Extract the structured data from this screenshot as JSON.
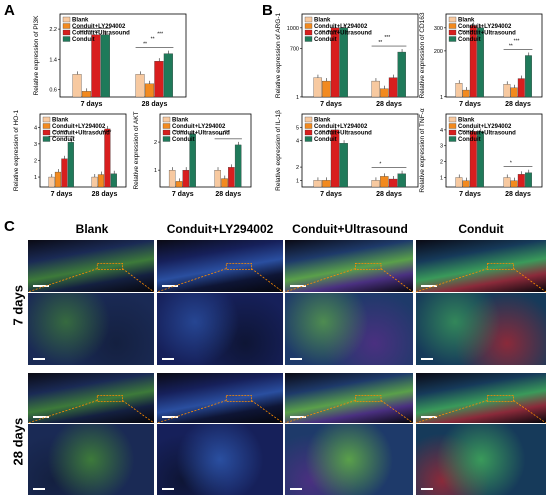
{
  "figure": {
    "panel_labels": [
      "A",
      "B",
      "C"
    ],
    "legend": [
      "Blank",
      "Conduit+LY294002",
      "Conduit+Ultrasound",
      "Conduit"
    ],
    "colors": {
      "Blank": "#f7c9a0",
      "Conduit+LY294002": "#f28a1f",
      "Conduit+Ultrasound": "#d81e1e",
      "Conduit": "#1f7a5a"
    }
  },
  "chart_data": [
    {
      "id": "pi3k",
      "type": "bar",
      "title": "",
      "ylabel": "Relative expression of PI3K",
      "categories": [
        "7 days",
        "28 days"
      ],
      "yticks": [
        "0.6",
        "1.4",
        "2.2"
      ],
      "ylim": [
        0.4,
        2.6
      ],
      "series": [
        {
          "name": "Blank",
          "values": [
            1.0,
            1.0
          ]
        },
        {
          "name": "Conduit+LY294002",
          "values": [
            0.55,
            0.75
          ]
        },
        {
          "name": "Conduit+Ultrasound",
          "values": [
            2.05,
            1.35
          ]
        },
        {
          "name": "Conduit",
          "values": [
            2.05,
            1.55
          ]
        }
      ],
      "annotations": [
        "***",
        "***",
        "***",
        "**",
        "**",
        "***"
      ]
    },
    {
      "id": "ho1",
      "type": "bar",
      "title": "",
      "ylabel": "Relative expression of HO-1",
      "categories": [
        "7 days",
        "28 days"
      ],
      "yticks": [
        "1",
        "2",
        "3",
        "4"
      ],
      "ylim": [
        0.4,
        4.8
      ],
      "series": [
        {
          "name": "Blank",
          "values": [
            1.0,
            1.0
          ]
        },
        {
          "name": "Conduit+LY294002",
          "values": [
            1.3,
            1.15
          ]
        },
        {
          "name": "Conduit+Ultrasound",
          "values": [
            2.1,
            3.9
          ]
        },
        {
          "name": "Conduit",
          "values": [
            3.1,
            1.2
          ]
        }
      ],
      "annotations": [
        "**",
        "**",
        "***",
        "*",
        "**",
        "***"
      ]
    },
    {
      "id": "akt",
      "type": "bar",
      "title": "",
      "ylabel": "Relative expression of AKT",
      "categories": [
        "7 days",
        "28 days"
      ],
      "yticks": [
        "1",
        "2"
      ],
      "ylim": [
        0.4,
        3.0
      ],
      "series": [
        {
          "name": "Blank",
          "values": [
            1.0,
            1.0
          ]
        },
        {
          "name": "Conduit+LY294002",
          "values": [
            0.6,
            0.7
          ]
        },
        {
          "name": "Conduit+Ultrasound",
          "values": [
            1.0,
            1.1
          ]
        },
        {
          "name": "Conduit",
          "values": [
            2.3,
            1.9
          ]
        }
      ],
      "annotations": [
        "**",
        "***",
        "***",
        "***"
      ]
    },
    {
      "id": "arg1",
      "type": "bar",
      "title": "",
      "ylabel": "Relative expression of ARG-1",
      "categories": [
        "7 days",
        "28 days"
      ],
      "yticks": [
        "1",
        "700",
        "1000"
      ],
      "ylim": [
        0,
        1200
      ],
      "series": [
        {
          "name": "Blank",
          "values": [
            280,
            230
          ]
        },
        {
          "name": "Conduit+LY294002",
          "values": [
            230,
            120
          ]
        },
        {
          "name": "Conduit+Ultrasound",
          "values": [
            1000,
            280
          ]
        },
        {
          "name": "Conduit",
          "values": [
            1000,
            650
          ]
        }
      ],
      "annotations": [
        "***",
        "***",
        "***",
        "**",
        "***"
      ]
    },
    {
      "id": "cd163",
      "type": "bar",
      "title": "",
      "ylabel": "Relative expression of CD163",
      "categories": [
        "7 days",
        "28 days"
      ],
      "yticks": [
        "1",
        "200",
        "300"
      ],
      "ylim": [
        0,
        360
      ],
      "series": [
        {
          "name": "Blank",
          "values": [
            60,
            55
          ]
        },
        {
          "name": "Conduit+LY294002",
          "values": [
            30,
            40
          ]
        },
        {
          "name": "Conduit+Ultrasound",
          "values": [
            310,
            80
          ]
        },
        {
          "name": "Conduit",
          "values": [
            300,
            180
          ]
        }
      ],
      "annotations": [
        "***",
        "***",
        "***",
        "**",
        "***"
      ]
    },
    {
      "id": "il1b",
      "type": "bar",
      "title": "",
      "ylabel": "Relative expression of IL-1β",
      "categories": [
        "7 days",
        "28 days"
      ],
      "yticks": [
        "1",
        "2",
        "4",
        "5"
      ],
      "ylim": [
        0.5,
        6
      ],
      "series": [
        {
          "name": "Blank",
          "values": [
            1.0,
            1.0
          ]
        },
        {
          "name": "Conduit+LY294002",
          "values": [
            1.0,
            1.3
          ]
        },
        {
          "name": "Conduit+Ultrasound",
          "values": [
            4.8,
            1.1
          ]
        },
        {
          "name": "Conduit",
          "values": [
            3.8,
            1.5
          ]
        }
      ],
      "annotations": [
        "***",
        "***",
        "*"
      ]
    },
    {
      "id": "tnfa",
      "type": "bar",
      "title": "",
      "ylabel": "Relative expression of TNF-α",
      "categories": [
        "7 days",
        "28 days"
      ],
      "yticks": [
        "1",
        "2",
        "3",
        "4"
      ],
      "ylim": [
        0.4,
        5
      ],
      "series": [
        {
          "name": "Blank",
          "values": [
            1.0,
            1.0
          ]
        },
        {
          "name": "Conduit+LY294002",
          "values": [
            0.8,
            0.8
          ]
        },
        {
          "name": "Conduit+Ultrasound",
          "values": [
            3.9,
            1.2
          ]
        },
        {
          "name": "Conduit",
          "values": [
            3.9,
            1.3
          ]
        }
      ],
      "annotations": [
        "***",
        "***",
        "*"
      ]
    }
  ],
  "panel_c": {
    "columns": [
      "Blank",
      "Conduit+LY294002",
      "Conduit+Ultrasound",
      "Conduit"
    ],
    "rows": [
      "7 days",
      "28 days"
    ]
  }
}
